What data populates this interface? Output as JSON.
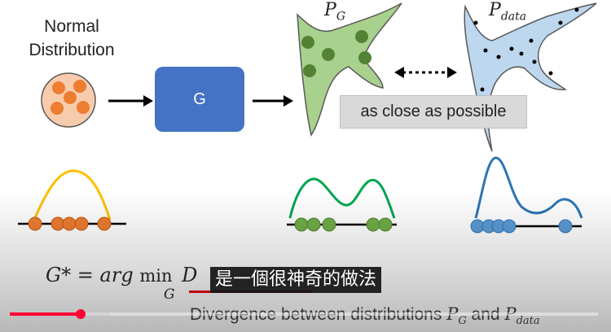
{
  "labels": {
    "normal_line1": "Normal",
    "normal_line2": "Distribution",
    "generator": "G",
    "close": "as close as possible",
    "pg_main": "P",
    "pg_sub": "G",
    "pdata_main": "P",
    "pdata_sub": "data"
  },
  "formula": {
    "lhs": "G* = arg ",
    "min": "min",
    "min_sub": "G",
    "div": "D"
  },
  "subtitle": "是一個很神奇的做法",
  "caption": {
    "text": "Divergence between distributions ",
    "p1_main": "P",
    "p1_sub": "G",
    "and": " and ",
    "p2_main": "P",
    "p2_sub": "data"
  },
  "video": {
    "played_fraction": 0.12,
    "buffered_fraction": 0.17
  },
  "colors": {
    "orange": "#ed7d31",
    "yellow": "#ffc000",
    "green_fill": "#a9d18e",
    "green_dot": "#548235",
    "green_curve": "#00a651",
    "blue_fill": "#bdd7ee",
    "blue_curve": "#2e75b6",
    "blue_dot": "#2e75b6",
    "box": "#4472c4",
    "red": "#ff0033"
  }
}
